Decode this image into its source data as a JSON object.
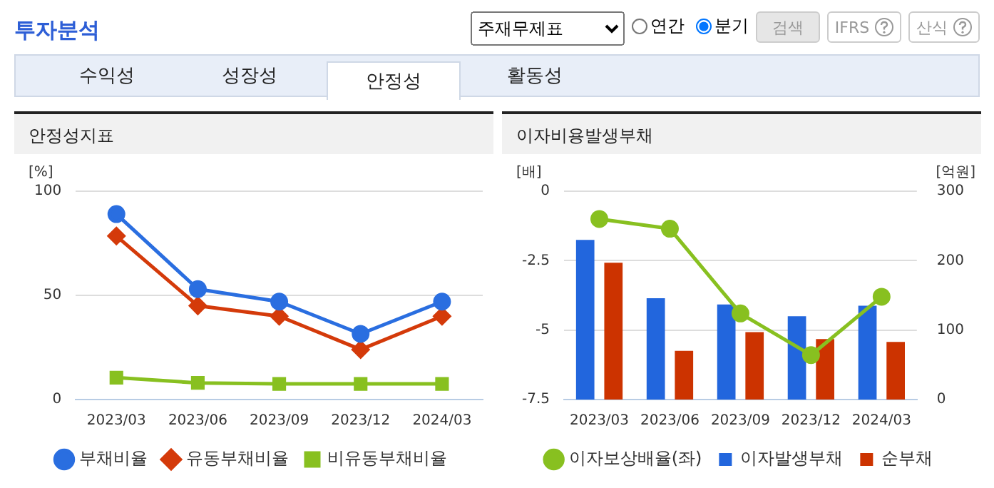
{
  "chart_data": [
    {
      "type": "other",
      "title": "투자분석",
      "annotations": [
        "주재무제표",
        "연간",
        "분기",
        "검색",
        "IFRS",
        "산식",
        "수익성",
        "성장성",
        "안정성",
        "활동성"
      ]
    },
    {
      "type": "line",
      "title": "안정성지표",
      "ylabel": "[%]",
      "categories": [
        "2023/03",
        "2023/06",
        "2023/09",
        "2023/12",
        "2024/03"
      ],
      "ylim": [
        0,
        100
      ],
      "yticks": [
        0,
        50,
        100
      ],
      "grid": "y",
      "legend": "bottom",
      "series": [
        {
          "name": "부채비율",
          "color": "#2a6ee0",
          "marker": "circle",
          "values": [
            89,
            53,
            47,
            31.5,
            47
          ]
        },
        {
          "name": "유동부채비율",
          "color": "#d43a0a",
          "marker": "diamond",
          "values": [
            78.5,
            45,
            40,
            24,
            40
          ]
        },
        {
          "name": "비유동부채비율",
          "color": "#88c020",
          "marker": "square",
          "values": [
            10.5,
            8,
            7.5,
            7.5,
            7.5
          ]
        }
      ]
    },
    {
      "type": "bar",
      "title": "이자비용발생부채",
      "ylabel": "[배]",
      "y2label": "[억원]",
      "categories": [
        "2023/03",
        "2023/06",
        "2023/09",
        "2023/12",
        "2024/03"
      ],
      "ylim": [
        -7.5,
        0
      ],
      "yticks": [
        -7.5,
        -5,
        -2.5,
        0
      ],
      "y2lim": [
        0,
        300
      ],
      "y2ticks": [
        0,
        100,
        200,
        300
      ],
      "grid": "y",
      "legend": "bottom",
      "series": [
        {
          "name": "이자발생부채",
          "color": "#2266dd",
          "axis": "y2",
          "values": [
            230,
            146,
            137,
            120,
            135
          ]
        },
        {
          "name": "순부채",
          "color": "#cc3300",
          "axis": "y2",
          "values": [
            197,
            70,
            97,
            87,
            83
          ]
        },
        {
          "name": "이자보상배율(좌)",
          "type": "line",
          "color": "#88c020",
          "marker": "circle",
          "values": [
            -1,
            -1.35,
            -4.4,
            -5.9,
            -3.8
          ]
        }
      ]
    }
  ]
}
